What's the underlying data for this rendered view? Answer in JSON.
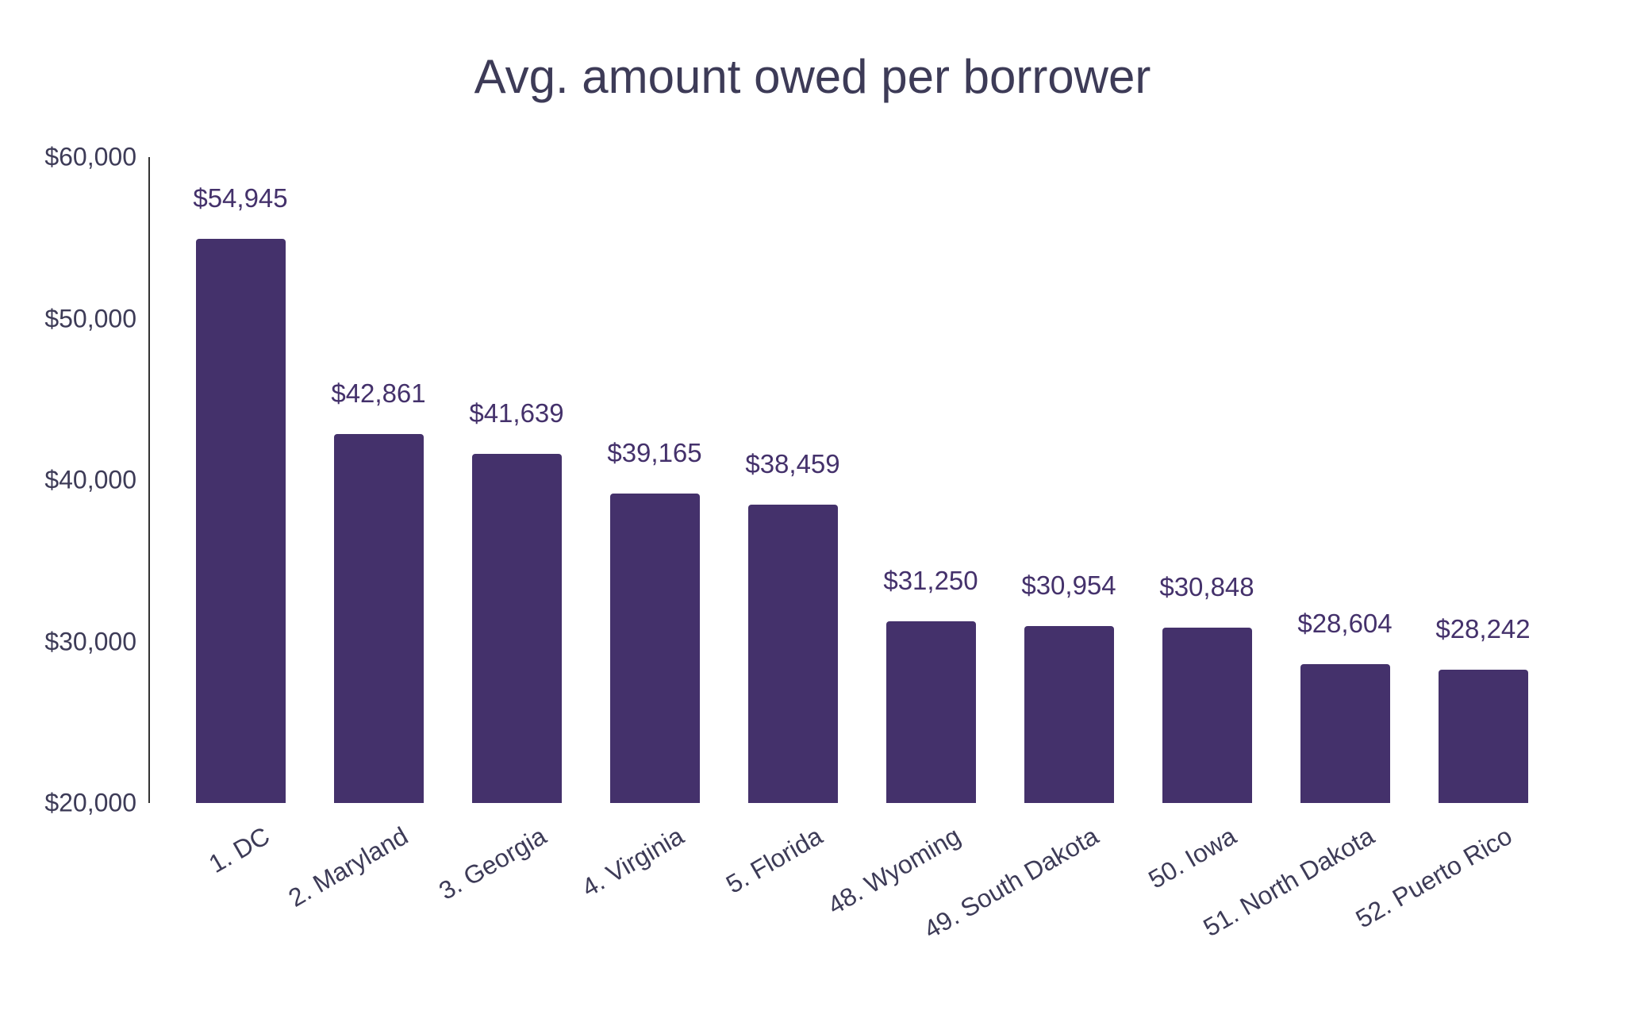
{
  "chart_data": {
    "type": "bar",
    "title": "Avg. amount owed per borrower",
    "xlabel": "",
    "ylabel": "",
    "ylim": [
      20000,
      60000
    ],
    "grid": false,
    "legend": null,
    "y_ticks": [
      "$60,000",
      "$50,000",
      "$40,000",
      "$30,000",
      "$20,000"
    ],
    "y_tick_values": [
      60000,
      50000,
      40000,
      30000,
      20000
    ],
    "categories": [
      "1. DC",
      "2. Maryland",
      "3. Georgia",
      "4. Virginia",
      "5. Florida",
      "48. Wyoming",
      "49. South Dakota",
      "50. Iowa",
      "51. North Dakota",
      "52. Puerto Rico"
    ],
    "values": [
      54945,
      42861,
      41639,
      39165,
      38459,
      31250,
      30954,
      30848,
      28604,
      28242
    ],
    "value_labels": [
      "$54,945",
      "$42,861",
      "$41,639",
      "$39,165",
      "$38,459",
      "$31,250",
      "$30,954",
      "$30,848",
      "$28,604",
      "$28,242"
    ],
    "colors": {
      "bar": "#44316b",
      "text": "#3d3b57",
      "axis": "#333333"
    }
  }
}
